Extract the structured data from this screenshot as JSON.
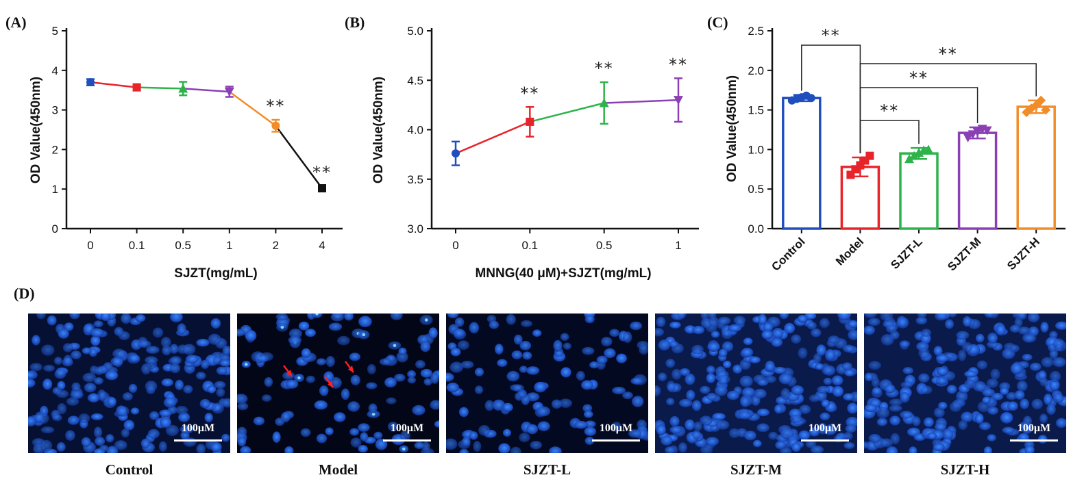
{
  "chart_data": [
    {
      "panel": "(A)",
      "type": "line",
      "xlabel": "SJZT(mg/mL)",
      "ylabel": "OD Value(450nm)",
      "categories": [
        "0",
        "0.1",
        "0.5",
        "1",
        "2",
        "4"
      ],
      "values": [
        3.7,
        3.57,
        3.54,
        3.46,
        2.6,
        1.02
      ],
      "errors": [
        0.08,
        0.08,
        0.17,
        0.13,
        0.15,
        0.05
      ],
      "point_colors": [
        "#1f4fbf",
        "#e8242b",
        "#2db34a",
        "#8b3fb5",
        "#f28c28",
        "#111111"
      ],
      "ylim": [
        0,
        5
      ],
      "yticks": [
        "0",
        "1",
        "2",
        "3",
        "4",
        "5"
      ],
      "significance": [
        "",
        "",
        "",
        "",
        "**",
        "**"
      ]
    },
    {
      "panel": "(B)",
      "type": "line",
      "xlabel": "MNNG(40 μM)+SJZT(mg/mL)",
      "ylabel": "OD Value(450nm)",
      "categories": [
        "0",
        "0.1",
        "0.5",
        "1"
      ],
      "values": [
        3.76,
        4.08,
        4.27,
        4.3
      ],
      "errors": [
        0.12,
        0.15,
        0.21,
        0.22
      ],
      "point_colors": [
        "#1f4fbf",
        "#e8242b",
        "#2db34a",
        "#8b3fb5"
      ],
      "ylim": [
        3.0,
        5.0
      ],
      "yticks": [
        "3.0",
        "3.5",
        "4.0",
        "4.5",
        "5.0"
      ],
      "significance": [
        "",
        "**",
        "**",
        "**"
      ]
    },
    {
      "panel": "(C)",
      "type": "bar",
      "ylabel": "OD Value(450nm)",
      "categories": [
        "Control",
        "Model",
        "SJZT-L",
        "SJZT-M",
        "SJZT-H"
      ],
      "values": [
        1.65,
        0.78,
        0.95,
        1.21,
        1.54
      ],
      "errors": [
        0.04,
        0.12,
        0.07,
        0.07,
        0.08
      ],
      "bar_colors": [
        "#1f4fbf",
        "#e8242b",
        "#2db34a",
        "#8b3fb5",
        "#f28c28"
      ],
      "points": [
        [
          1.62,
          1.64,
          1.66,
          1.68,
          1.65
        ],
        [
          0.68,
          0.75,
          0.8,
          0.86,
          0.92
        ],
        [
          0.88,
          0.92,
          0.96,
          0.99,
          1.0
        ],
        [
          1.15,
          1.19,
          1.22,
          1.26,
          1.24
        ],
        [
          1.47,
          1.52,
          1.56,
          1.62,
          1.5
        ]
      ],
      "ylim": [
        0,
        2.5
      ],
      "yticks": [
        "0.0",
        "0.5",
        "1.0",
        "1.5",
        "2.0",
        "2.5"
      ],
      "comparisons": [
        {
          "from": "Control",
          "to": "Model",
          "label": "**"
        },
        {
          "from": "Model",
          "to": "SJZT-H",
          "label": "**"
        },
        {
          "from": "Model",
          "to": "SJZT-M",
          "label": "**"
        },
        {
          "from": "Model",
          "to": "SJZT-L",
          "label": "**"
        }
      ]
    }
  ],
  "panel_d": {
    "letter": "(D)",
    "scale_bar": "100μM",
    "images": [
      {
        "label": "Control",
        "arrows": 0
      },
      {
        "label": "Model",
        "arrows": 3
      },
      {
        "label": "SJZT-L",
        "arrows": 0
      },
      {
        "label": "SJZT-M",
        "arrows": 0
      },
      {
        "label": "SJZT-H",
        "arrows": 0
      }
    ]
  }
}
